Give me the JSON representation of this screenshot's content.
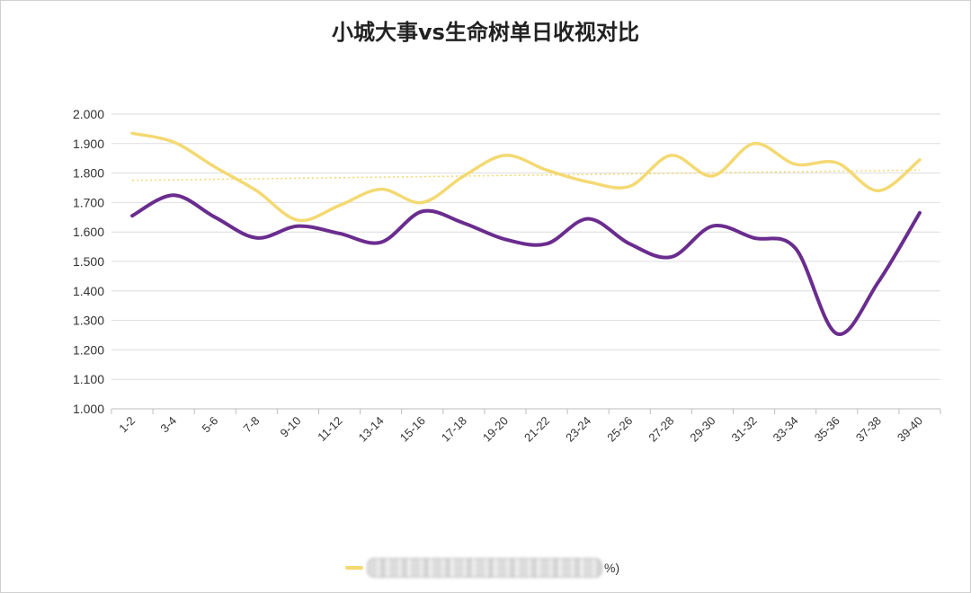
{
  "title": "小城大事vs生命树单日收视对比",
  "chart_data": {
    "type": "line",
    "title": "小城大事vs生命树单日收视对比",
    "categories": [
      "1-2",
      "3-4",
      "5-6",
      "7-8",
      "9-10",
      "11-12",
      "13-14",
      "15-16",
      "17-18",
      "19-20",
      "21-22",
      "23-24",
      "25-26",
      "27-28",
      "29-30",
      "31-32",
      "33-34",
      "35-36",
      "37-38",
      "39-40"
    ],
    "ylim": [
      1.0,
      2.0
    ],
    "yticks": [
      "1.000",
      "1.100",
      "1.200",
      "1.300",
      "1.400",
      "1.500",
      "1.600",
      "1.700",
      "1.800",
      "1.900",
      "2.000"
    ],
    "grid": true,
    "legend_position": "bottom",
    "series": [
      {
        "color": "#f4d972",
        "values": [
          1.935,
          1.905,
          1.82,
          1.74,
          1.64,
          1.69,
          1.745,
          1.7,
          1.79,
          1.86,
          1.81,
          1.77,
          1.755,
          1.86,
          1.79,
          1.9,
          1.83,
          1.835,
          1.74,
          1.845
        ]
      },
      {
        "color": "#6a2c8e",
        "values": [
          1.655,
          1.725,
          1.65,
          1.58,
          1.62,
          1.595,
          1.565,
          1.67,
          1.63,
          1.575,
          1.56,
          1.645,
          1.56,
          1.515,
          1.62,
          1.58,
          1.545,
          1.255,
          1.43,
          1.665
        ]
      }
    ],
    "trendline": {
      "color": "#f4d972",
      "style": "dotted",
      "from": 1.775,
      "to": 1.81
    },
    "legend_tail": "%)"
  }
}
